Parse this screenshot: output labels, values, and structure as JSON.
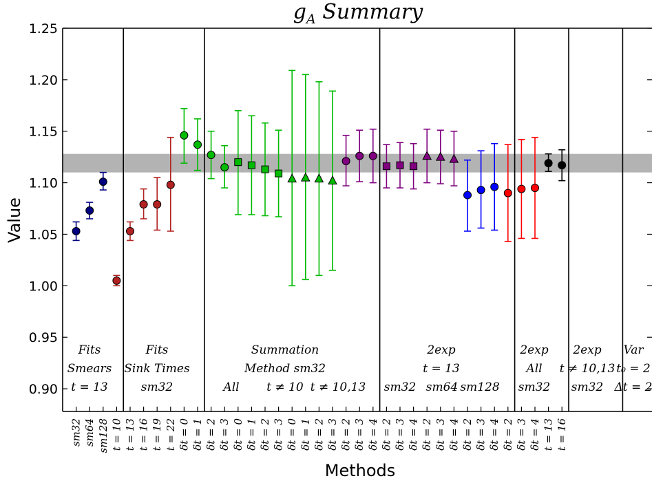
{
  "chart_data": {
    "type": "scatter",
    "title": "g_A Summary",
    "title_main": "g",
    "title_sub": "A",
    "title_rest": " Summary",
    "xlabel": "Methods",
    "ylabel": "Value",
    "ylim": [
      0.878,
      1.25
    ],
    "yticks": [
      "0.90",
      "0.95",
      "1.00",
      "1.05",
      "1.10",
      "1.15",
      "1.20",
      "1.25"
    ],
    "band": {
      "low": 1.11,
      "high": 1.128,
      "color": "#b3b3b3"
    },
    "groups": [
      {
        "lines": [
          "Fits",
          "Smears",
          "t = 13"
        ]
      },
      {
        "lines": [
          "Fits",
          "Sink Times",
          "sm32"
        ]
      },
      {
        "lines": [
          "Summation",
          "Method sm32"
        ],
        "sub": [
          "All",
          "t ≠ 10",
          "t ≠ 10,13"
        ]
      },
      {
        "lines": [
          "2exp",
          "t = 13"
        ],
        "sub": [
          "sm32",
          "sm64",
          "sm128"
        ]
      },
      {
        "lines": [
          "2exp",
          "All",
          "sm32"
        ]
      },
      {
        "lines": [
          "2exp",
          "t ≠ 10,13",
          "sm32"
        ]
      },
      {
        "lines": [
          "Var",
          "t₀ = 2",
          "Δt = 2"
        ]
      }
    ],
    "points": [
      {
        "label": "sm32",
        "y": 1.053,
        "lo": 1.044,
        "hi": 1.062,
        "color": "#000080",
        "marker": "circle"
      },
      {
        "label": "sm64",
        "y": 1.073,
        "lo": 1.065,
        "hi": 1.081,
        "color": "#000080",
        "marker": "circle"
      },
      {
        "label": "sm128",
        "y": 1.101,
        "lo": 1.093,
        "hi": 1.11,
        "color": "#000080",
        "marker": "circle"
      },
      {
        "label": "t = 10",
        "y": 1.005,
        "lo": 1.0,
        "hi": 1.01,
        "color": "#b22222",
        "marker": "circle"
      },
      {
        "label": "t = 13",
        "y": 1.053,
        "lo": 1.044,
        "hi": 1.062,
        "color": "#b22222",
        "marker": "circle"
      },
      {
        "label": "t = 16",
        "y": 1.079,
        "lo": 1.065,
        "hi": 1.094,
        "color": "#b22222",
        "marker": "circle"
      },
      {
        "label": "t = 19",
        "y": 1.079,
        "lo": 1.054,
        "hi": 1.105,
        "color": "#b22222",
        "marker": "circle"
      },
      {
        "label": "t = 22",
        "y": 1.098,
        "lo": 1.053,
        "hi": 1.144,
        "color": "#b22222",
        "marker": "circle"
      },
      {
        "label": "δt = 0",
        "y": 1.146,
        "lo": 1.119,
        "hi": 1.172,
        "color": "#00bb00",
        "marker": "circle"
      },
      {
        "label": "δt = 1",
        "y": 1.137,
        "lo": 1.112,
        "hi": 1.162,
        "color": "#00bb00",
        "marker": "circle"
      },
      {
        "label": "δt = 2",
        "y": 1.127,
        "lo": 1.104,
        "hi": 1.15,
        "color": "#00bb00",
        "marker": "circle"
      },
      {
        "label": "δt = 3",
        "y": 1.115,
        "lo": 1.095,
        "hi": 1.136,
        "color": "#00bb00",
        "marker": "circle"
      },
      {
        "label": "δt = 0",
        "y": 1.12,
        "lo": 1.069,
        "hi": 1.17,
        "color": "#00bb00",
        "marker": "square"
      },
      {
        "label": "δt = 1",
        "y": 1.117,
        "lo": 1.069,
        "hi": 1.165,
        "color": "#00bb00",
        "marker": "square"
      },
      {
        "label": "δt = 2",
        "y": 1.113,
        "lo": 1.068,
        "hi": 1.158,
        "color": "#00bb00",
        "marker": "square"
      },
      {
        "label": "δt = 3",
        "y": 1.109,
        "lo": 1.067,
        "hi": 1.151,
        "color": "#00bb00",
        "marker": "square"
      },
      {
        "label": "δt = 0",
        "y": 1.104,
        "lo": 1.0,
        "hi": 1.209,
        "color": "#00bb00",
        "marker": "triangle"
      },
      {
        "label": "δt = 1",
        "y": 1.105,
        "lo": 1.006,
        "hi": 1.205,
        "color": "#00bb00",
        "marker": "triangle"
      },
      {
        "label": "δt = 2",
        "y": 1.104,
        "lo": 1.01,
        "hi": 1.198,
        "color": "#00bb00",
        "marker": "triangle"
      },
      {
        "label": "δt = 3",
        "y": 1.102,
        "lo": 1.015,
        "hi": 1.189,
        "color": "#00bb00",
        "marker": "triangle"
      },
      {
        "label": "δt = 2",
        "y": 1.121,
        "lo": 1.097,
        "hi": 1.146,
        "color": "#800080",
        "marker": "circle"
      },
      {
        "label": "δt = 3",
        "y": 1.126,
        "lo": 1.101,
        "hi": 1.151,
        "color": "#800080",
        "marker": "circle"
      },
      {
        "label": "δt = 4",
        "y": 1.126,
        "lo": 1.1,
        "hi": 1.152,
        "color": "#800080",
        "marker": "circle"
      },
      {
        "label": "δt = 2",
        "y": 1.116,
        "lo": 1.095,
        "hi": 1.137,
        "color": "#800080",
        "marker": "square"
      },
      {
        "label": "δt = 3",
        "y": 1.117,
        "lo": 1.095,
        "hi": 1.139,
        "color": "#800080",
        "marker": "square"
      },
      {
        "label": "δt = 4",
        "y": 1.116,
        "lo": 1.094,
        "hi": 1.138,
        "color": "#800080",
        "marker": "square"
      },
      {
        "label": "δt = 2",
        "y": 1.126,
        "lo": 1.1,
        "hi": 1.152,
        "color": "#800080",
        "marker": "triangle"
      },
      {
        "label": "δt = 3",
        "y": 1.125,
        "lo": 1.099,
        "hi": 1.151,
        "color": "#800080",
        "marker": "triangle"
      },
      {
        "label": "δt = 4",
        "y": 1.123,
        "lo": 1.097,
        "hi": 1.15,
        "color": "#800080",
        "marker": "triangle"
      },
      {
        "label": "δt = 2",
        "y": 1.088,
        "lo": 1.053,
        "hi": 1.122,
        "color": "#0000ff",
        "marker": "circle"
      },
      {
        "label": "δt = 3",
        "y": 1.093,
        "lo": 1.056,
        "hi": 1.131,
        "color": "#0000ff",
        "marker": "circle"
      },
      {
        "label": "δt = 4",
        "y": 1.096,
        "lo": 1.054,
        "hi": 1.138,
        "color": "#0000ff",
        "marker": "circle"
      },
      {
        "label": "δt = 2",
        "y": 1.09,
        "lo": 1.043,
        "hi": 1.137,
        "color": "#ff0000",
        "marker": "circle"
      },
      {
        "label": "δt = 3",
        "y": 1.094,
        "lo": 1.046,
        "hi": 1.142,
        "color": "#ff0000",
        "marker": "circle"
      },
      {
        "label": "δt = 4",
        "y": 1.095,
        "lo": 1.046,
        "hi": 1.144,
        "color": "#ff0000",
        "marker": "circle"
      },
      {
        "label": "t = 13",
        "y": 1.119,
        "lo": 1.111,
        "hi": 1.128,
        "color": "#000000",
        "marker": "circle"
      },
      {
        "label": "t = 16",
        "y": 1.117,
        "lo": 1.102,
        "hi": 1.132,
        "color": "#000000",
        "marker": "circle"
      }
    ]
  }
}
